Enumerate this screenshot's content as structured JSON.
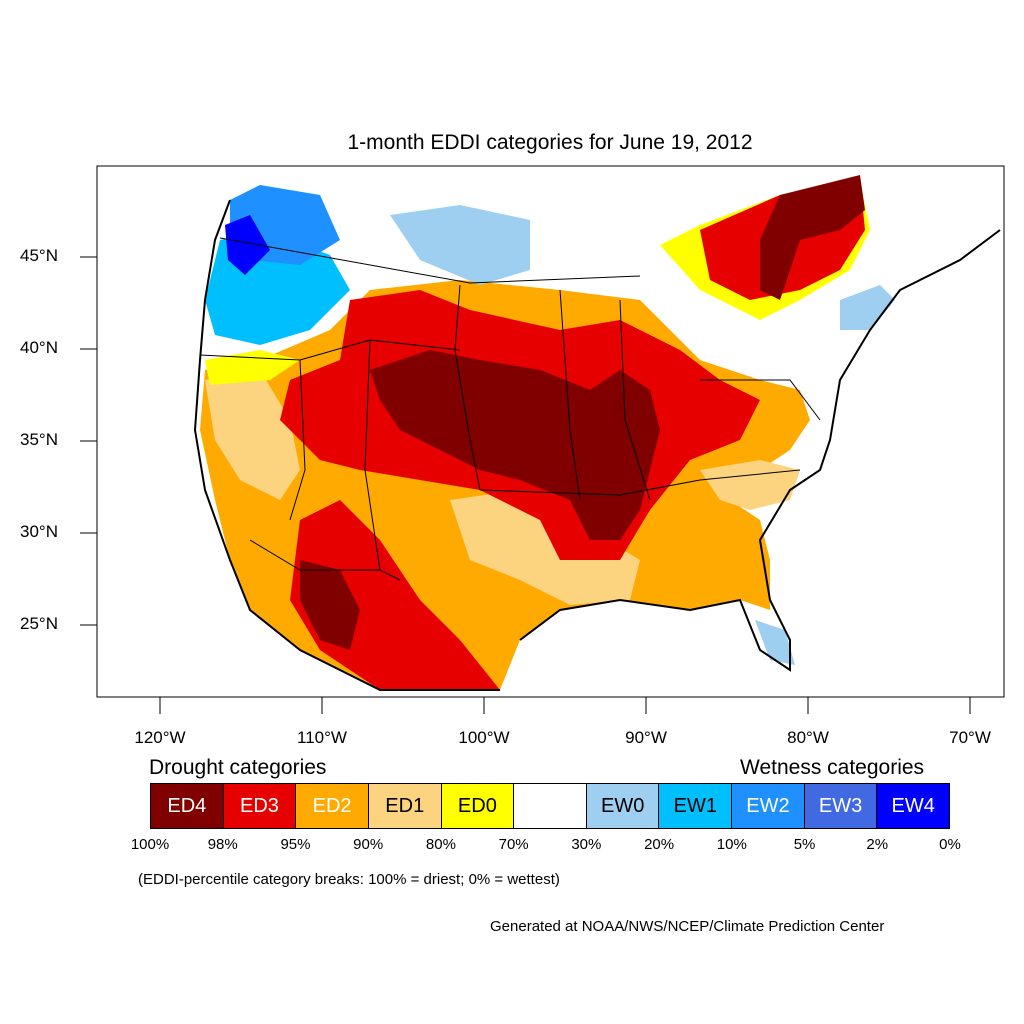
{
  "title": "1-month EDDI categories for June 19, 2012",
  "y_axis": [
    {
      "label": "45°N",
      "lat": 45
    },
    {
      "label": "40°N",
      "lat": 40
    },
    {
      "label": "35°N",
      "lat": 35
    },
    {
      "label": "30°N",
      "lat": 30
    },
    {
      "label": "25°N",
      "lat": 25
    }
  ],
  "x_axis": [
    {
      "label": "120°W",
      "lon": -120
    },
    {
      "label": "110°W",
      "lon": -110
    },
    {
      "label": "100°W",
      "lon": -100
    },
    {
      "label": "90°W",
      "lon": -90
    },
    {
      "label": "80°W",
      "lon": -80
    },
    {
      "label": "70°W",
      "lon": -70
    }
  ],
  "legend": {
    "drought_heading": "Drought categories",
    "wetness_heading": "Wetness categories",
    "categories": [
      {
        "label": "ED4",
        "color": "#800000",
        "text_color": "#ffffff"
      },
      {
        "label": "ED3",
        "color": "#e60000",
        "text_color": "#ffffff"
      },
      {
        "label": "ED2",
        "color": "#ffaa00",
        "text_color": "#ffffff"
      },
      {
        "label": "ED1",
        "color": "#fcd37f",
        "text_color": "#000000"
      },
      {
        "label": "ED0",
        "color": "#ffff00",
        "text_color": "#000000"
      },
      {
        "label": "",
        "color": "#ffffff",
        "text_color": "#000000"
      },
      {
        "label": "EW0",
        "color": "#9ecff0",
        "text_color": "#000000"
      },
      {
        "label": "EW1",
        "color": "#00bfff",
        "text_color": "#000000"
      },
      {
        "label": "EW2",
        "color": "#1e90ff",
        "text_color": "#ffffff"
      },
      {
        "label": "EW3",
        "color": "#4169e1",
        "text_color": "#ffffff"
      },
      {
        "label": "EW4",
        "color": "#0000ff",
        "text_color": "#ffffff"
      }
    ],
    "breaks": [
      "100%",
      "98%",
      "95%",
      "90%",
      "80%",
      "70%",
      "30%",
      "20%",
      "10%",
      "5%",
      "2%",
      "0%"
    ]
  },
  "note": "(EDDI-percentile category breaks: 100% = driest; 0% = wettest)",
  "credit": "Generated at NOAA/NWS/NCEP/Climate Prediction Center"
}
